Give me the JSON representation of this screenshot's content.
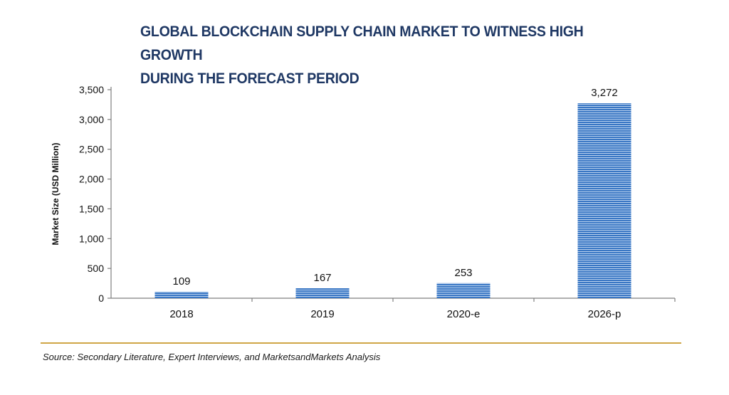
{
  "title": {
    "line1": "GLOBAL BLOCKCHAIN SUPPLY CHAIN MARKET TO WITNESS HIGH GROWTH",
    "line2": "DURING THE FORECAST PERIOD"
  },
  "source": "Source: Secondary Literature, Expert Interviews, and MarketsandMarkets Analysis",
  "colors": {
    "title": "#1f3864",
    "bar": "#3a77c4",
    "divider": "#d0a646"
  },
  "chart_data": {
    "type": "bar",
    "categories": [
      "2018",
      "2019",
      "2020-e",
      "2026-p"
    ],
    "values": [
      109,
      167,
      253,
      3272
    ],
    "data_labels": [
      "109",
      "167",
      "253",
      "3,272"
    ],
    "ylabel": "Market Size (USD Million)",
    "xlabel": "",
    "ylim": [
      0,
      3500
    ],
    "yticks": [
      0,
      500,
      1000,
      1500,
      2000,
      2500,
      3000,
      3500
    ],
    "ytick_labels": [
      "0",
      "500",
      "1,000",
      "1,500",
      "2,000",
      "2,500",
      "3,000",
      "3,500"
    ],
    "grid": false,
    "legend": false
  }
}
